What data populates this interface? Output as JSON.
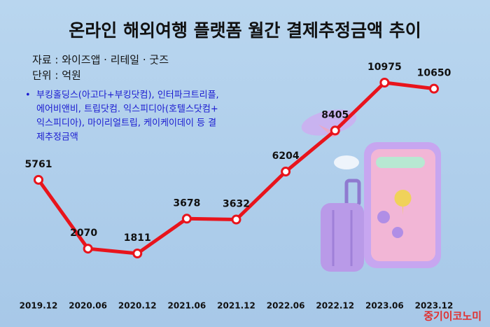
{
  "chart_data": {
    "type": "line",
    "title": "온라인 해외여행 플랫폼 월간 결제추정금액 추이",
    "source": "자료 : 와이즈앱 · 리테일 · 굿즈",
    "unit": "단위 : 억원",
    "note": [
      "부킹홀딩스(아고다+부킹닷컴), 인터파크트리플,",
      "에어비앤비, 트립닷컴. 익스피디아(호텔스닷컴+",
      "익스피디아), 마이리얼트립, 케이케이데이 등 결",
      "제추정금액"
    ],
    "watermark": "중기이코노미",
    "categories": [
      "2019.12",
      "2020.06",
      "2020.12",
      "2021.06",
      "2021.12",
      "2022.06",
      "2022.12",
      "2023.06",
      "2023.12"
    ],
    "values": [
      5761,
      2070,
      1811,
      3678,
      3632,
      6204,
      8405,
      10975,
      10650
    ],
    "color": "#e8141c"
  }
}
